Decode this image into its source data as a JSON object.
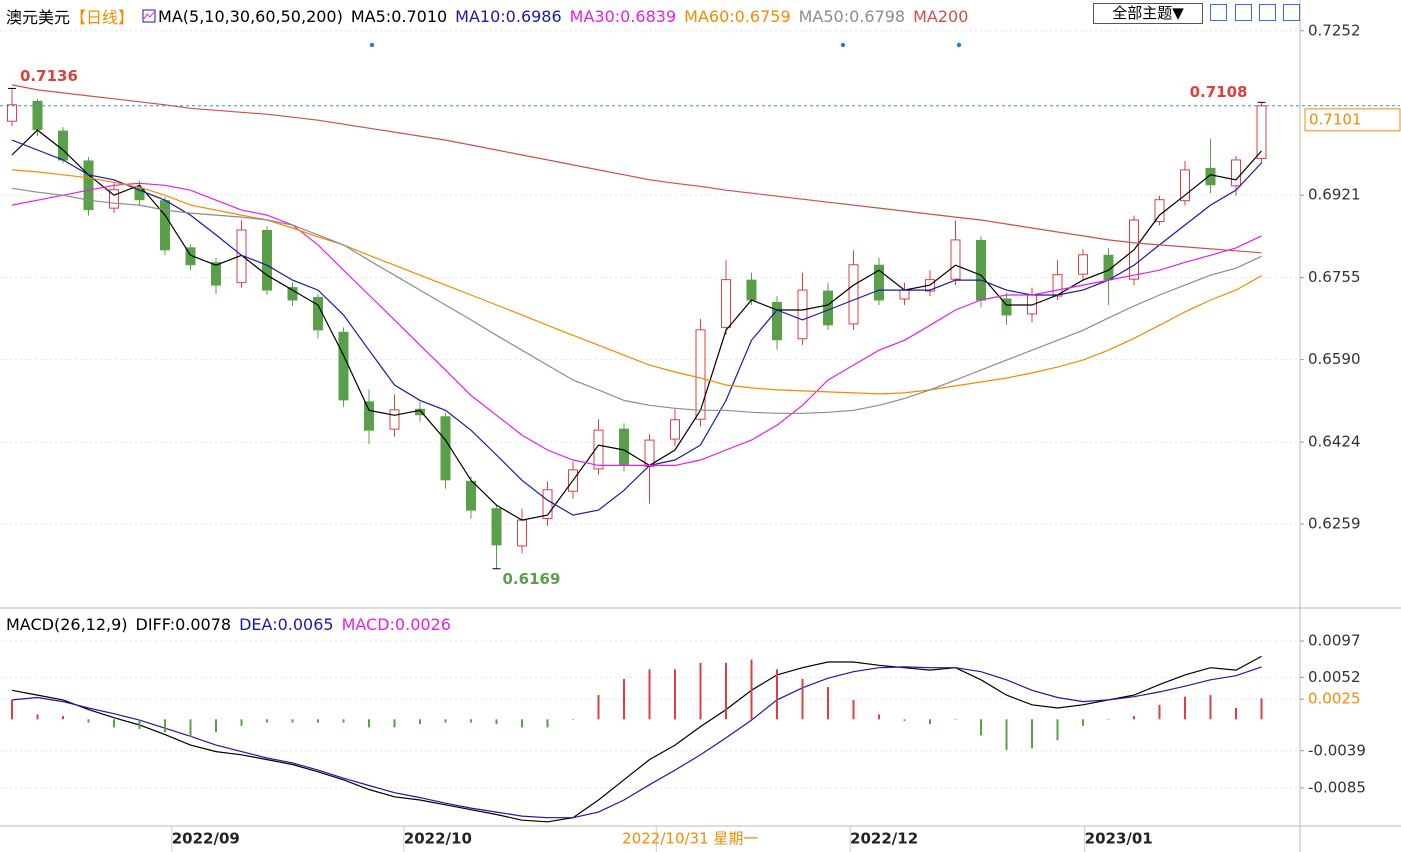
{
  "chart_data": [
    {
      "type": "candlestick",
      "title": "澳元美元",
      "subtitle": "【日线】",
      "indicator": "MA(5,10,30,60,50,200)",
      "menu": "全部主题▼",
      "up_color": "#d9413f",
      "down_color": "#5aa04a",
      "grid": true,
      "ylim": [
        0.6096,
        0.7314
      ],
      "yticks": [
        0.7252,
        0.6921,
        0.6755,
        {
          "value": 0.659,
          "label": "0.6590"
        },
        0.6424,
        0.6259
      ],
      "xticks": [
        {
          "value": 7.6,
          "label": "2022/09"
        },
        {
          "value": 16.7,
          "label": "2022/10"
        },
        {
          "value": 26.6,
          "label": "2022/10/31 星期一",
          "color": "#f08c00"
        },
        {
          "value": 34.2,
          "label": "2022/12"
        },
        {
          "value": 43.4,
          "label": "2023/01"
        }
      ],
      "open": [
        0.707,
        0.711,
        0.705,
        0.699,
        0.6895,
        0.6935,
        0.691,
        0.6815,
        0.6785,
        0.6745,
        0.685,
        0.6735,
        0.6715,
        0.6645,
        0.6505,
        0.645,
        0.649,
        0.6475,
        0.6345,
        0.629,
        0.6215,
        0.627,
        0.6325,
        0.637,
        0.645,
        0.6375,
        0.643,
        0.647,
        0.6655,
        0.675,
        0.6705,
        0.6632,
        0.6728,
        0.6662,
        0.678,
        0.6712,
        0.6728,
        0.6752,
        0.683,
        0.6712,
        0.6682,
        0.6718,
        0.6762,
        0.68,
        0.6752,
        0.6868,
        0.691,
        0.6975,
        0.694,
        0.6995
      ],
      "high": [
        0.7136,
        0.7115,
        0.7058,
        0.6998,
        0.6945,
        0.695,
        0.6918,
        0.6822,
        0.6795,
        0.687,
        0.6858,
        0.6745,
        0.6722,
        0.6655,
        0.653,
        0.652,
        0.6505,
        0.6482,
        0.6355,
        0.6298,
        0.629,
        0.6345,
        0.6385,
        0.647,
        0.6462,
        0.644,
        0.649,
        0.6672,
        0.679,
        0.6765,
        0.6718,
        0.6765,
        0.6745,
        0.681,
        0.6795,
        0.6745,
        0.677,
        0.687,
        0.6838,
        0.6725,
        0.6735,
        0.679,
        0.6812,
        0.6815,
        0.688,
        0.692,
        0.699,
        0.7035,
        0.7,
        0.7108
      ],
      "low": [
        0.706,
        0.704,
        0.6985,
        0.688,
        0.6885,
        0.69,
        0.68,
        0.677,
        0.6722,
        0.6735,
        0.672,
        0.6698,
        0.6632,
        0.6495,
        0.642,
        0.6435,
        0.6465,
        0.633,
        0.627,
        0.6169,
        0.62,
        0.6255,
        0.631,
        0.6358,
        0.6365,
        0.63,
        0.6415,
        0.6455,
        0.664,
        0.67,
        0.661,
        0.662,
        0.665,
        0.665,
        0.67,
        0.67,
        0.6718,
        0.674,
        0.6695,
        0.666,
        0.6665,
        0.671,
        0.675,
        0.67,
        0.674,
        0.686,
        0.69,
        0.6925,
        0.692,
        0.6985
      ],
      "close": [
        0.7103,
        0.7053,
        0.6992,
        0.6892,
        0.6932,
        0.6912,
        0.6811,
        0.6781,
        0.674,
        0.6851,
        0.673,
        0.671,
        0.665,
        0.6509,
        0.6448,
        0.6489,
        0.6479,
        0.6348,
        0.6287,
        0.6217,
        0.6267,
        0.6328,
        0.6368,
        0.6448,
        0.6378,
        0.6428,
        0.6469,
        0.665,
        0.6751,
        0.671,
        0.663,
        0.673,
        0.666,
        0.6781,
        0.671,
        0.673,
        0.6751,
        0.6831,
        0.671,
        0.668,
        0.672,
        0.6761,
        0.6801,
        0.6751,
        0.6871,
        0.6912,
        0.6972,
        0.6942,
        0.6992,
        0.7101
      ],
      "series": [
        {
          "name": "MA5:",
          "color": "#000000",
          "last_label": "0.7010",
          "values": [
            0.7002,
            0.7052,
            0.7012,
            0.6962,
            0.6921,
            0.6941,
            0.6881,
            0.68,
            0.678,
            0.68,
            0.676,
            0.673,
            0.67,
            0.6599,
            0.6488,
            0.6478,
            0.6488,
            0.6428,
            0.6347,
            0.6297,
            0.6267,
            0.6277,
            0.6347,
            0.6418,
            0.6408,
            0.6377,
            0.6408,
            0.6488,
            0.6649,
            0.671,
            0.669,
            0.669,
            0.67,
            0.674,
            0.677,
            0.673,
            0.674,
            0.678,
            0.676,
            0.67,
            0.67,
            0.672,
            0.675,
            0.677,
            0.6811,
            0.6881,
            0.6921,
            0.6962,
            0.6952,
            0.701
          ]
        },
        {
          "name": "MA10:",
          "color": "#1a1aa6",
          "values": [
            0.7032,
            0.7012,
            0.6992,
            0.6962,
            0.6952,
            0.6931,
            0.6911,
            0.6881,
            0.6841,
            0.68,
            0.678,
            0.675,
            0.673,
            0.668,
            0.6609,
            0.6539,
            0.6508,
            0.6488,
            0.6448,
            0.6398,
            0.6347,
            0.6307,
            0.6277,
            0.6287,
            0.6327,
            0.6377,
            0.6388,
            0.6418,
            0.6508,
            0.6629,
            0.669,
            0.667,
            0.669,
            0.671,
            0.673,
            0.673,
            0.673,
            0.675,
            0.675,
            0.673,
            0.672,
            0.672,
            0.673,
            0.675,
            0.678,
            0.6821,
            0.6861,
            0.6901,
            0.6931,
            0.6986
          ]
        },
        {
          "name": "MA30:",
          "color": "#e81ee8",
          "values": [
            0.6901,
            0.6911,
            0.6921,
            0.6931,
            0.6941,
            0.6945,
            0.6941,
            0.6931,
            0.6911,
            0.6891,
            0.6881,
            0.6861,
            0.6821,
            0.677,
            0.672,
            0.667,
            0.6619,
            0.6569,
            0.6518,
            0.6478,
            0.6438,
            0.6408,
            0.6388,
            0.6377,
            0.6377,
            0.6377,
            0.6377,
            0.6388,
            0.6408,
            0.6428,
            0.6458,
            0.6498,
            0.6549,
            0.6579,
            0.6609,
            0.6629,
            0.6659,
            0.669,
            0.671,
            0.672,
            0.672,
            0.673,
            0.674,
            0.675,
            0.676,
            0.677,
            0.6786,
            0.68,
            0.6815,
            0.6839
          ]
        },
        {
          "name": "MA60:",
          "color": "#f08c00",
          "values": [
            0.6972,
            0.6968,
            0.6962,
            0.6956,
            0.6947,
            0.6937,
            0.6921,
            0.6901,
            0.6891,
            0.6881,
            0.6871,
            0.6855,
            0.6837,
            0.6821,
            0.68,
            0.678,
            0.676,
            0.674,
            0.672,
            0.67,
            0.668,
            0.6659,
            0.6639,
            0.6619,
            0.6599,
            0.6579,
            0.6565,
            0.6553,
            0.6539,
            0.6533,
            0.6529,
            0.6527,
            0.6525,
            0.6523,
            0.6521,
            0.6523,
            0.6529,
            0.6537,
            0.6545,
            0.6553,
            0.6563,
            0.6575,
            0.6589,
            0.6609,
            0.6633,
            0.6659,
            0.6686,
            0.671,
            0.673,
            0.6759
          ]
        },
        {
          "name": "MA50:",
          "color": "#8c8c8c",
          "values": [
            0.6935,
            0.6927,
            0.6921,
            0.6911,
            0.6905,
            0.6901,
            0.6891,
            0.6885,
            0.6881,
            0.6877,
            0.6871,
            0.6861,
            0.6841,
            0.6821,
            0.679,
            0.676,
            0.673,
            0.67,
            0.667,
            0.6639,
            0.6609,
            0.6579,
            0.6549,
            0.6529,
            0.6508,
            0.6498,
            0.6492,
            0.6488,
            0.6488,
            0.6484,
            0.6482,
            0.6482,
            0.6484,
            0.6488,
            0.6498,
            0.6512,
            0.6529,
            0.6549,
            0.6569,
            0.6589,
            0.6609,
            0.6629,
            0.6649,
            0.6674,
            0.6698,
            0.672,
            0.674,
            0.676,
            0.6774,
            0.6798
          ]
        },
        {
          "name": "MA200",
          "color": "#d0504a",
          "show_value": false,
          "values": [
            0.7143,
            0.7133,
            0.7127,
            0.7121,
            0.7115,
            0.7109,
            0.7103,
            0.7096,
            0.7092,
            0.7088,
            0.7084,
            0.7078,
            0.7072,
            0.7064,
            0.7056,
            0.7048,
            0.704,
            0.7032,
            0.7022,
            0.7012,
            0.7002,
            0.6992,
            0.6982,
            0.6972,
            0.6962,
            0.6952,
            0.6945,
            0.6939,
            0.6931,
            0.6925,
            0.6919,
            0.6913,
            0.6907,
            0.6901,
            0.6895,
            0.6889,
            0.6883,
            0.6877,
            0.6871,
            0.6863,
            0.6855,
            0.6847,
            0.6839,
            0.6831,
            0.6825,
            0.6821,
            0.6817,
            0.6813,
            0.6809,
            0.6805
          ]
        }
      ]
    },
    {
      "type": "macd",
      "title": "MACD(26,12,9)",
      "grid": true,
      "ylim": [
        -0.0131,
        0.0133
      ],
      "yticks": [
        0.0097,
        0.0052,
        {
          "value": 0.0025,
          "color": "#f08c00"
        },
        -0.0039,
        -0.0085
      ],
      "series": [
        {
          "name": "DIFF:",
          "color": "#000000",
          "values": [
            0.0036,
            0.003,
            0.0024,
            0.0012,
            0.0002,
            -0.0007,
            -0.0019,
            -0.0032,
            -0.004,
            -0.0044,
            -0.005,
            -0.0056,
            -0.0065,
            -0.0075,
            -0.0087,
            -0.0096,
            -0.01,
            -0.0106,
            -0.0112,
            -0.0118,
            -0.0125,
            -0.0127,
            -0.0122,
            -0.01,
            -0.0075,
            -0.005,
            -0.0032,
            -0.0009,
            0.0012,
            0.0036,
            0.0055,
            0.0064,
            0.0071,
            0.0071,
            0.0067,
            0.0064,
            0.0061,
            0.0064,
            0.0049,
            0.003,
            0.0018,
            0.0014,
            0.0018,
            0.0024,
            0.003,
            0.0043,
            0.0055,
            0.0064,
            0.0061,
            0.0078
          ]
        },
        {
          "name": "DEA:",
          "color": "#1a1aa6",
          "values": [
            0.0024,
            0.0027,
            0.0022,
            0.0014,
            0.0007,
            -0.0001,
            -0.0011,
            -0.0021,
            -0.0032,
            -0.004,
            -0.0048,
            -0.0054,
            -0.0063,
            -0.0073,
            -0.0082,
            -0.0091,
            -0.0097,
            -0.0104,
            -0.011,
            -0.0115,
            -0.012,
            -0.0122,
            -0.0122,
            -0.0115,
            -0.01,
            -0.0081,
            -0.0063,
            -0.0044,
            -0.0023,
            -0.0001,
            0.0024,
            0.0039,
            0.0051,
            0.0059,
            0.0064,
            0.0065,
            0.0064,
            0.0064,
            0.0059,
            0.0049,
            0.0036,
            0.0027,
            0.0022,
            0.0024,
            0.0028,
            0.0034,
            0.0041,
            0.0049,
            0.0054,
            0.0065
          ]
        },
        {
          "name": "MACD:",
          "color": "#e81ee8",
          "up_color": "#d9413f",
          "down_color": "#5aa04a",
          "values": [
            0.0024,
            0.0006,
            0.0004,
            -0.0004,
            -0.001,
            -0.0012,
            -0.0016,
            -0.0022,
            -0.0016,
            -0.0008,
            -0.0004,
            -0.0004,
            -0.0004,
            -0.0004,
            -0.001,
            -0.001,
            -0.0006,
            -0.0004,
            -0.0004,
            -0.0006,
            -0.001,
            -0.001,
            0.0,
            0.003,
            0.005,
            0.0062,
            0.0062,
            0.007,
            0.007,
            0.0074,
            0.0062,
            0.005,
            0.004,
            0.0024,
            0.0006,
            -0.0002,
            -0.0006,
            0.0,
            -0.002,
            -0.0038,
            -0.0036,
            -0.0026,
            -0.0008,
            0.0,
            0.0004,
            0.0018,
            0.0028,
            0.003,
            0.0014,
            0.0026
          ]
        }
      ]
    }
  ]
}
